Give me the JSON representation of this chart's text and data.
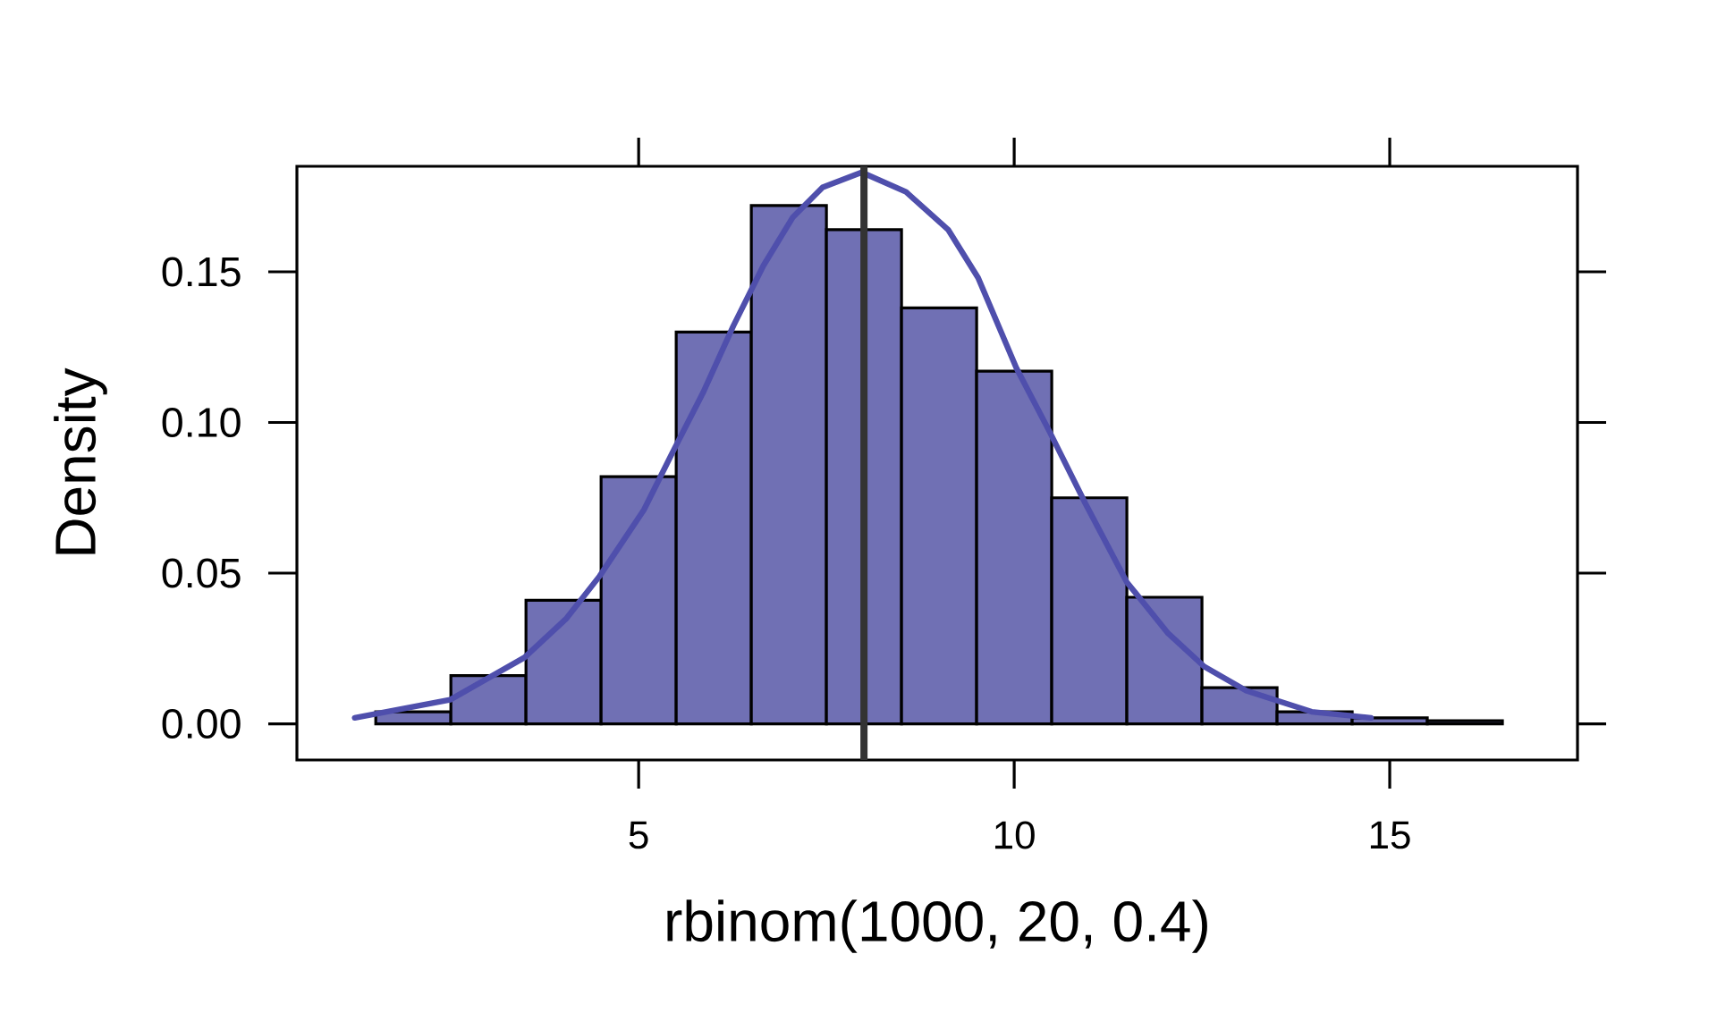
{
  "chart_data": {
    "type": "histogram",
    "xlabel": "rbinom(1000, 20, 0.4)",
    "ylabel": "Density",
    "series": [
      {
        "color": "#7070b4",
        "bins": [
          1.5,
          2.5,
          3.5,
          4.5,
          5.5,
          6.5,
          7.5,
          8.5,
          9.5,
          10.5,
          11.5,
          12.5,
          13.5,
          14.5,
          15.5,
          16.5
        ],
        "values": [
          0.004,
          0.016,
          0.041,
          0.082,
          0.13,
          0.172,
          0.164,
          0.138,
          0.117,
          0.075,
          0.042,
          0.012,
          0.004,
          0.002,
          0.001
        ]
      },
      {
        "type": "line",
        "color": "#4f4fac",
        "x": [
          1.22,
          2.49,
          3.48,
          4.04,
          4.48,
          5.07,
          5.47,
          5.86,
          6.26,
          6.66,
          7.05,
          7.45,
          7.97,
          8.56,
          9.12,
          9.52,
          10.03,
          10.47,
          10.95,
          11.5,
          12.05,
          12.53,
          13.09,
          13.96,
          14.75
        ],
        "values": [
          0.002,
          0.008,
          0.022,
          0.035,
          0.049,
          0.071,
          0.091,
          0.11,
          0.132,
          0.152,
          0.168,
          0.178,
          0.183,
          0.1765,
          0.164,
          0.148,
          0.118,
          0.097,
          0.073,
          0.047,
          0.03,
          0.019,
          0.011,
          0.004,
          0.002
        ]
      }
    ],
    "ref_lines": [
      {
        "axis": "x",
        "value": 8,
        "color": "#333333"
      }
    ],
    "xlim": [
      0.45,
      17.5
    ],
    "ylim": [
      -0.012,
      0.185
    ],
    "xticks": [
      5,
      10,
      15
    ],
    "yticks": [
      {
        "value": 0,
        "label": "0.00"
      },
      {
        "value": 0.05,
        "label": "0.05"
      },
      {
        "value": 0.1,
        "label": "0.10"
      },
      {
        "value": 0.15,
        "label": "0.15"
      }
    ]
  }
}
